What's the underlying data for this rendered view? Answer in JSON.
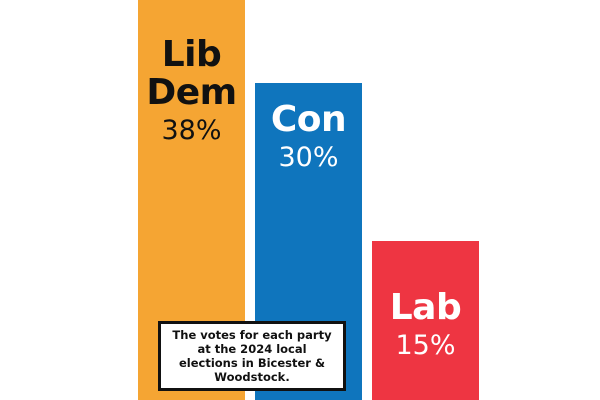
{
  "chart_data": {
    "type": "bar",
    "categories": [
      "Lib Dem",
      "Con",
      "Lab"
    ],
    "values": [
      38,
      30,
      15
    ],
    "value_labels": [
      "38%",
      "30%",
      "15%"
    ],
    "colors": [
      "#F5A533",
      "#0F75BD",
      "#EE3542"
    ],
    "label_colors": [
      "#111111",
      "#ffffff",
      "#ffffff"
    ],
    "annotation": "The votes for each party at the 2024 local elections in Bicester & Woodstock.",
    "ylim": [
      0,
      38
    ],
    "grid": false,
    "legend": "none"
  }
}
